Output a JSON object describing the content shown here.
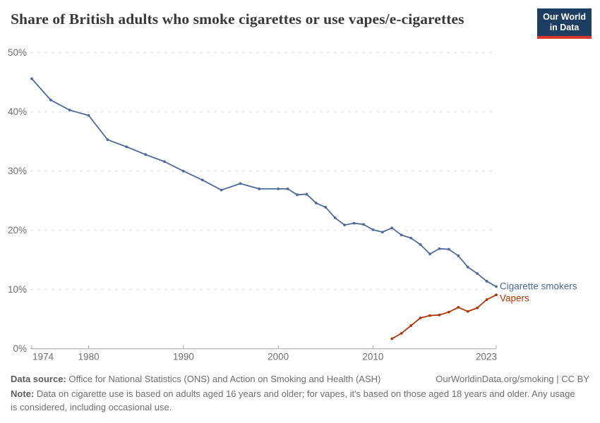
{
  "header": {
    "title": "Share of British adults who smoke cigarettes or use vapes/e-cigarettes",
    "logo": {
      "line1": "Our World",
      "line2": "in Data"
    }
  },
  "chart_data": {
    "type": "line",
    "title": "Share of British adults who smoke cigarettes or use vapes/e-cigarettes",
    "xlabel": "",
    "ylabel": "",
    "xlim": [
      1974,
      2023
    ],
    "ylim": [
      0,
      50
    ],
    "grid": "horizontal-dashed",
    "legend_position": "end-of-line-labels",
    "y_ticks": [
      {
        "value": 0,
        "label": "0%"
      },
      {
        "value": 10,
        "label": "10%"
      },
      {
        "value": 20,
        "label": "20%"
      },
      {
        "value": 30,
        "label": "30%"
      },
      {
        "value": 40,
        "label": "40%"
      },
      {
        "value": 50,
        "label": "50%"
      }
    ],
    "x_ticks": [
      {
        "value": 1974,
        "label": "1974"
      },
      {
        "value": 1980,
        "label": "1980"
      },
      {
        "value": 1990,
        "label": "1990"
      },
      {
        "value": 2000,
        "label": "2000"
      },
      {
        "value": 2010,
        "label": "2010"
      },
      {
        "value": 2023,
        "label": "2023"
      }
    ],
    "series": [
      {
        "name": "Cigarette smokers",
        "color": "#4c6a9c",
        "points": [
          [
            1974,
            45.6
          ],
          [
            1976,
            42.0
          ],
          [
            1978,
            40.3
          ],
          [
            1980,
            39.4
          ],
          [
            1982,
            35.3
          ],
          [
            1984,
            34.1
          ],
          [
            1986,
            32.8
          ],
          [
            1988,
            31.6
          ],
          [
            1990,
            30.0
          ],
          [
            1992,
            28.5
          ],
          [
            1994,
            26.8
          ],
          [
            1996,
            27.9
          ],
          [
            1998,
            27.0
          ],
          [
            2000,
            27.0
          ],
          [
            2001,
            27.0
          ],
          [
            2002,
            26.0
          ],
          [
            2003,
            26.1
          ],
          [
            2004,
            24.6
          ],
          [
            2005,
            23.9
          ],
          [
            2006,
            22.1
          ],
          [
            2007,
            20.9
          ],
          [
            2008,
            21.2
          ],
          [
            2009,
            21.0
          ],
          [
            2010,
            20.1
          ],
          [
            2011,
            19.7
          ],
          [
            2012,
            20.4
          ],
          [
            2013,
            19.2
          ],
          [
            2014,
            18.7
          ],
          [
            2015,
            17.6
          ],
          [
            2016,
            16.0
          ],
          [
            2017,
            16.9
          ],
          [
            2018,
            16.8
          ],
          [
            2019,
            15.7
          ],
          [
            2020,
            13.8
          ],
          [
            2021,
            12.7
          ],
          [
            2022,
            11.4
          ],
          [
            2023,
            10.5
          ]
        ]
      },
      {
        "name": "Vapers",
        "color": "#b13507",
        "points": [
          [
            2012,
            1.7
          ],
          [
            2013,
            2.6
          ],
          [
            2014,
            3.9
          ],
          [
            2015,
            5.2
          ],
          [
            2016,
            5.6
          ],
          [
            2017,
            5.7
          ],
          [
            2018,
            6.2
          ],
          [
            2019,
            7.0
          ],
          [
            2020,
            6.3
          ],
          [
            2021,
            6.9
          ],
          [
            2022,
            8.3
          ],
          [
            2023,
            9.1
          ]
        ]
      }
    ]
  },
  "footer": {
    "source_label": "Data source:",
    "source_text": "Office for National Statistics (ONS) and Action on Smoking and Health (ASH)",
    "attribution": "OurWorldinData.org/smoking | CC BY",
    "note_label": "Note:",
    "note_text": "Data on cigarette use is based on adults aged 16 years and older; for vapes, it's based on those aged 18 years and older. Any usage is considered, including occasional use."
  },
  "colors": {
    "cigarette_smokers": "#4c6a9c",
    "vapers": "#b13507",
    "logo_background": "#1d3d63",
    "logo_bar": "#d8352c",
    "gridline": "#dddddd",
    "axis": "#a7a7a7",
    "tick_text": "#6e6e6e"
  }
}
